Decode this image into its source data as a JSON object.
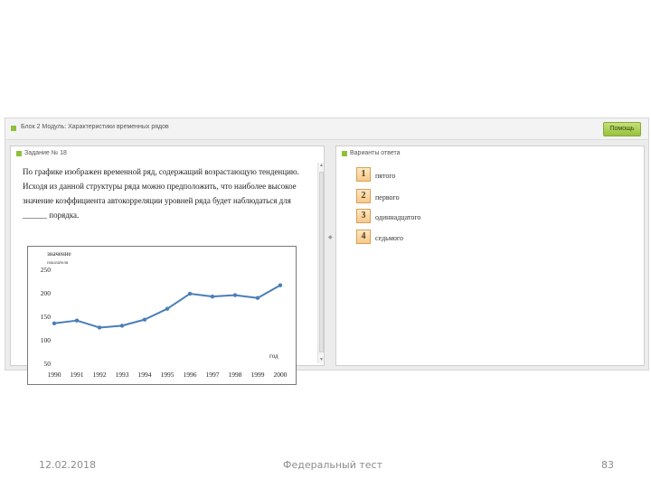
{
  "toolbar": {
    "module_title": "Блок 2 Модуль: Характеристики временных рядов",
    "help_label": "Помощь"
  },
  "task_panel": {
    "header": "Задание № 18",
    "question": "По графике изображен временной ряд, содержащий возрастающую тенденцию. Исходя из данной структуры ряда можно предположить, что наиболее высокое значение коэффициента автокорреляции уровней ряда будет наблюдаться для ______ порядка."
  },
  "answers_panel": {
    "header": "Варианты ответа",
    "options": [
      {
        "num": "1",
        "text": "пятого"
      },
      {
        "num": "2",
        "text": "первого"
      },
      {
        "num": "3",
        "text": "одиннадцатого"
      },
      {
        "num": "4",
        "text": "седьмого"
      }
    ]
  },
  "chart_data": {
    "type": "line",
    "ylabel": "значение",
    "ylabel_sub": "показателя",
    "xlabel": "год",
    "x": [
      "1990",
      "1991",
      "1992",
      "1993",
      "1994",
      "1995",
      "1996",
      "1997",
      "1998",
      "1999",
      "2000"
    ],
    "series": [
      {
        "values": [
          135,
          141,
          126,
          130,
          143,
          166,
          198,
          192,
          195,
          189,
          216
        ]
      }
    ],
    "yticks": [
      50,
      100,
      150,
      200,
      250
    ],
    "ylim": [
      50,
      250
    ],
    "color": "#4a7eb8",
    "grid": false
  },
  "footer": {
    "date": "12.02.2018",
    "center": "Федеральный тест",
    "page": "83"
  }
}
